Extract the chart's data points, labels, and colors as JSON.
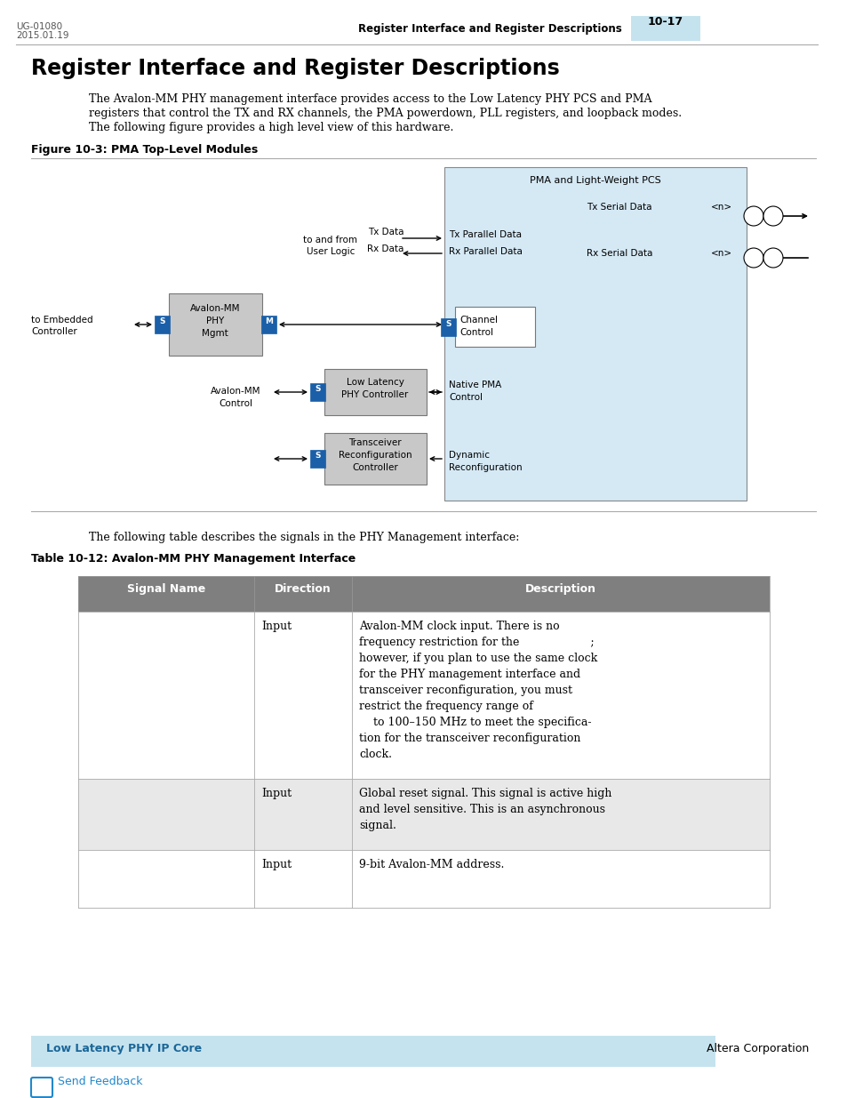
{
  "page_id_line1": "UG-01080",
  "page_id_line2": "2015.01.19",
  "header_title": "Register Interface and Register Descriptions",
  "header_page": "10-17",
  "main_title": "Register Interface and Register Descriptions",
  "body_text_line1": "The Avalon-MM PHY management interface provides access to the Low Latency PHY PCS and PMA",
  "body_text_line2": "registers that control the TX and RX channels, the PMA powerdown, PLL registers, and loopback modes.",
  "body_text_line3": "The following figure provides a high level view of this hardware.",
  "figure_title": "Figure 10-3: PMA Top-Level Modules",
  "table_intro": "The following table describes the signals in the PHY Management interface:",
  "table_title": "Table 10-12: Avalon-MM PHY Management Interface",
  "footer_left": "Low Latency PHY IP Core",
  "footer_right": "Altera Corporation",
  "footer_bg": "#c5e3ee",
  "header_bg": "#c5e3ee",
  "table_header_bg": "#7f7f7f",
  "table_alt_bg": "#e8e8e8",
  "desc_row1": "Avalon-MM clock input. There is no\nfrequency restriction for the                    ;\nhowever, if you plan to use the same clock\nfor the PHY management interface and\ntransceiver reconfiguration, you must\nrestrict the frequency range of\n    to 100–150 MHz to meet the specifica-\ntion for the transceiver reconfiguration\nclock.",
  "desc_row2": "Global reset signal. This signal is active high\nand level sensitive. This is an asynchronous\nsignal.",
  "desc_row3": "9-bit Avalon-MM address."
}
